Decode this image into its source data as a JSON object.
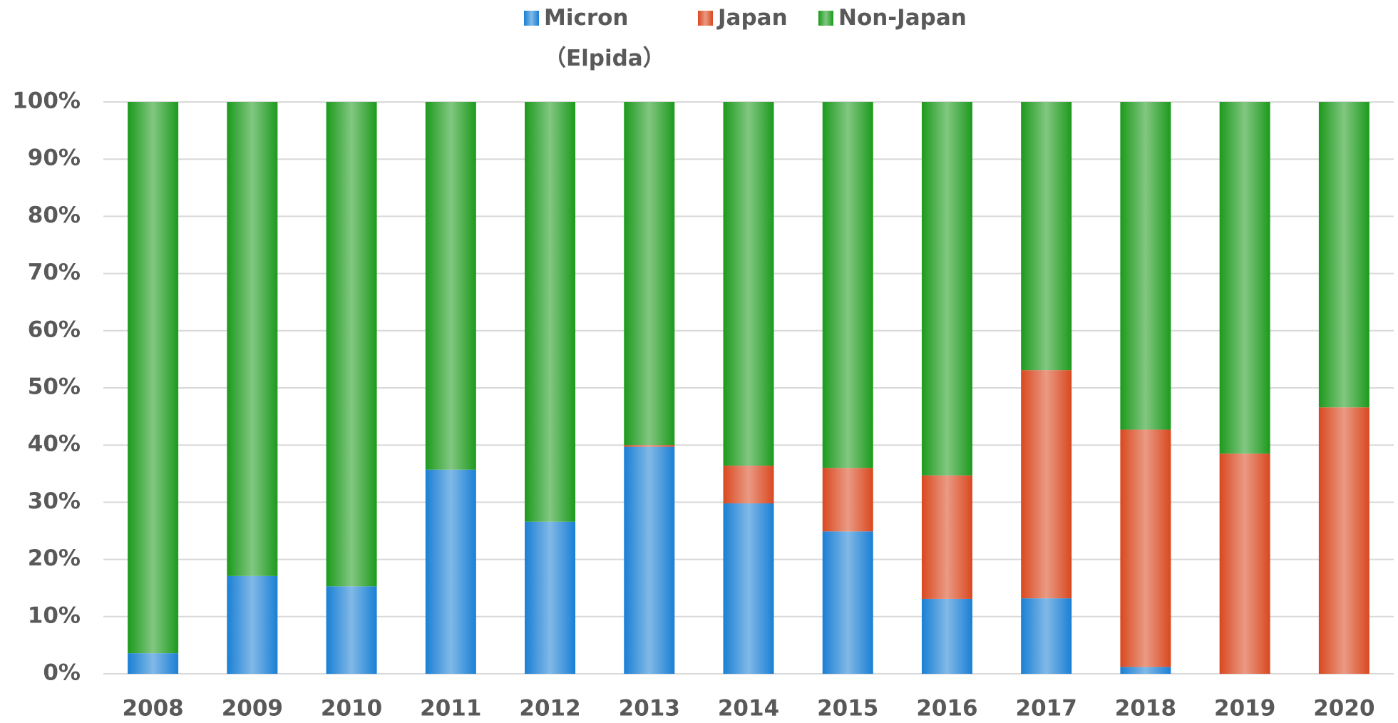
{
  "chart_data": {
    "type": "stacked_bar",
    "categories": [
      "2008",
      "2009",
      "2010",
      "2011",
      "2012",
      "2013",
      "2014",
      "2015",
      "2016",
      "2017",
      "2018",
      "2019",
      "2020"
    ],
    "series": [
      {
        "name": "Micron\n（Elpida）",
        "color": "#1a7fd4",
        "values": [
          3.6,
          17.1,
          15.3,
          35.7,
          26.6,
          39.7,
          29.8,
          24.9,
          13.1,
          13.2,
          1.2,
          0,
          0
        ]
      },
      {
        "name": "Japan",
        "color": "#d9481f",
        "values": [
          0,
          0,
          0,
          0,
          0,
          0.3,
          6.6,
          11.1,
          21.6,
          39.9,
          41.5,
          38.5,
          46.6
        ]
      },
      {
        "name": "Non-Japan",
        "color": "#1c9a1c",
        "values": [
          96.4,
          82.9,
          84.7,
          64.3,
          73.4,
          60.0,
          63.6,
          64.0,
          65.3,
          46.9,
          57.3,
          61.5,
          53.4
        ]
      }
    ],
    "ylim": [
      0,
      100
    ],
    "yticks": [
      {
        "value": 0,
        "label": "0%"
      },
      {
        "value": 10,
        "label": "10%"
      },
      {
        "value": 20,
        "label": "20%"
      },
      {
        "value": 30,
        "label": "30%"
      },
      {
        "value": 40,
        "label": "40%"
      },
      {
        "value": 50,
        "label": "50%"
      },
      {
        "value": 60,
        "label": "60%"
      },
      {
        "value": 70,
        "label": "70%"
      },
      {
        "value": 80,
        "label": "80%"
      },
      {
        "value": 90,
        "label": "90%"
      },
      {
        "value": 100,
        "label": "100%"
      }
    ],
    "grid": true,
    "legend": "top"
  }
}
